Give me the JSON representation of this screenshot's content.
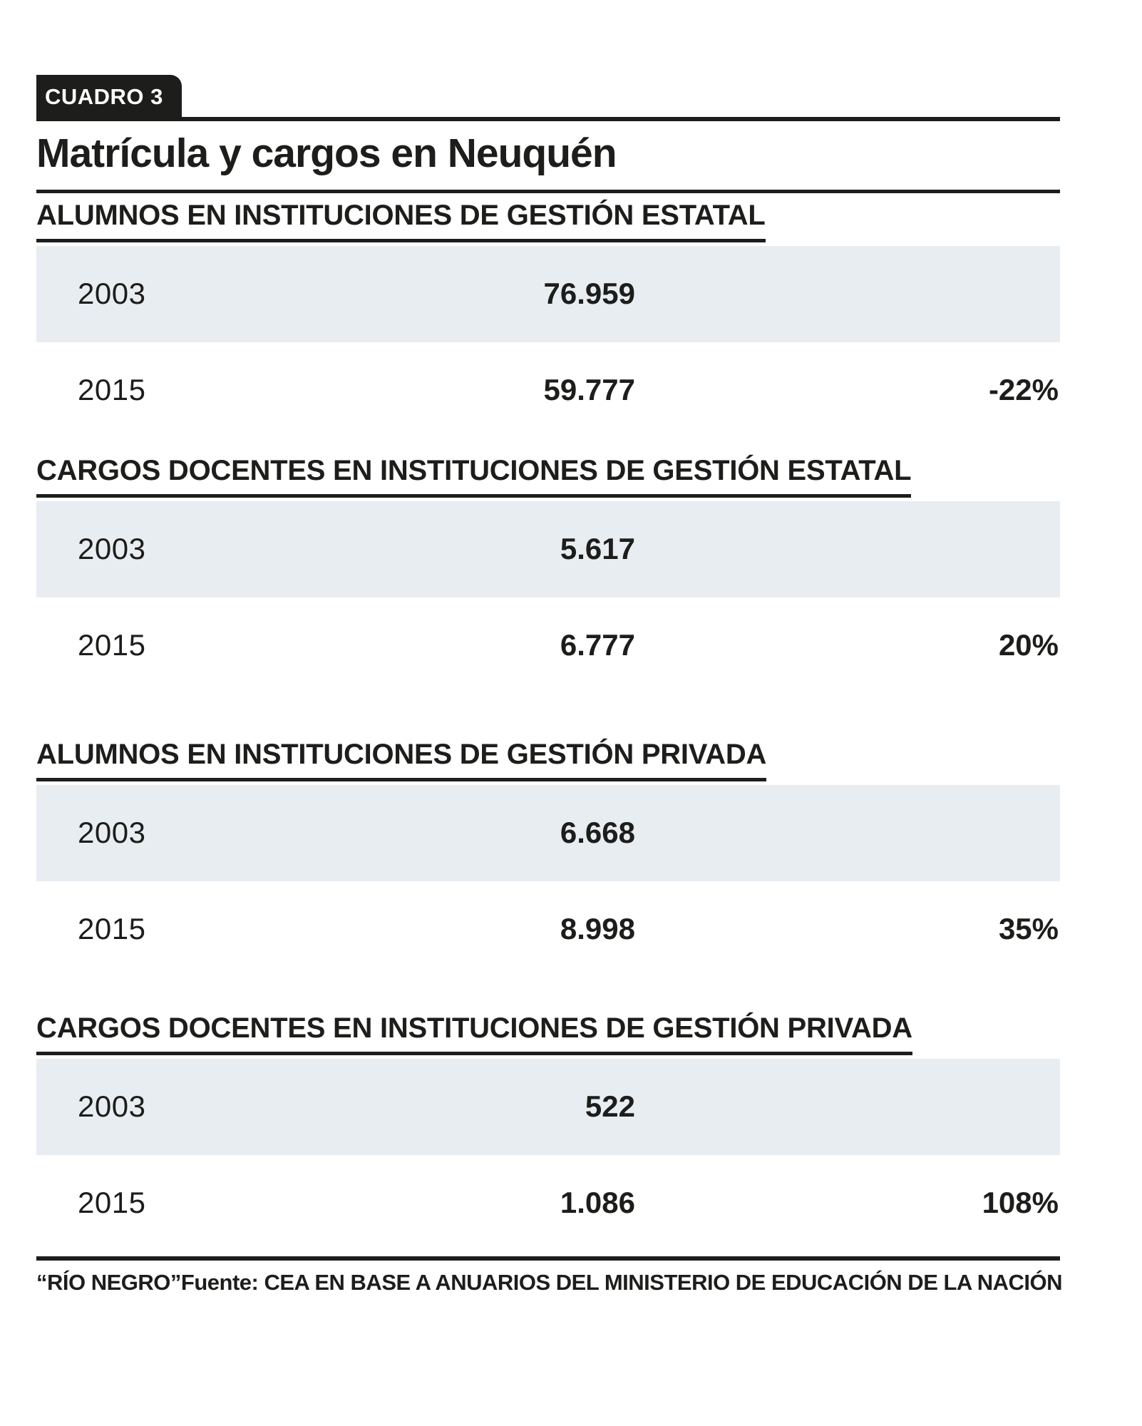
{
  "badge": {
    "label": "CUADRO 3"
  },
  "title": "Matrícula y cargos en Neuquén",
  "sections": [
    {
      "heading": "ALUMNOS EN INSTITUCIONES DE GESTIÓN ESTATAL",
      "rows": [
        {
          "year": "2003",
          "value": "76.959",
          "change": ""
        },
        {
          "year": "2015",
          "value": "59.777",
          "change": "-22%"
        }
      ]
    },
    {
      "heading": "CARGOS DOCENTES EN INSTITUCIONES DE GESTIÓN ESTATAL",
      "rows": [
        {
          "year": "2003",
          "value": "5.617",
          "change": ""
        },
        {
          "year": "2015",
          "value": "6.777",
          "change": "20%"
        }
      ]
    },
    {
      "heading": "ALUMNOS EN INSTITUCIONES DE GESTIÓN PRIVADA",
      "rows": [
        {
          "year": "2003",
          "value": "6.668",
          "change": ""
        },
        {
          "year": "2015",
          "value": "8.998",
          "change": "35%"
        }
      ]
    },
    {
      "heading": "CARGOS DOCENTES EN INSTITUCIONES DE GESTIÓN PRIVADA",
      "rows": [
        {
          "year": "2003",
          "value": "522",
          "change": ""
        },
        {
          "year": "2015",
          "value": "1.086",
          "change": "108%"
        }
      ]
    }
  ],
  "footer": {
    "credit": "“RÍO NEGRO”",
    "source": "Fuente: CEA EN BASE A ANUARIOS DEL MINISTERIO DE EDUCACIÓN DE LA NACIÓN"
  },
  "colors": {
    "ink": "#1d1d1b",
    "row_background": "#e8edf2",
    "badge_text": "#ffffff"
  },
  "chart_data": {
    "type": "table",
    "title": "Matrícula y cargos en Neuquén",
    "categories": [
      "2003",
      "2015"
    ],
    "series": [
      {
        "name": "Alumnos en instituciones de gestión estatal",
        "values": [
          76959,
          59777
        ],
        "change_pct": -22
      },
      {
        "name": "Cargos docentes en instituciones de gestión estatal",
        "values": [
          5617,
          6777
        ],
        "change_pct": 20
      },
      {
        "name": "Alumnos en instituciones de gestión privada",
        "values": [
          6668,
          8998
        ],
        "change_pct": 35
      },
      {
        "name": "Cargos docentes en instituciones de gestión privada",
        "values": [
          522,
          1086
        ],
        "change_pct": 108
      }
    ],
    "source": "CEA en base a anuarios del Ministerio de Educación de la Nación",
    "credit": "Río Negro",
    "figure_label": "Cuadro 3"
  }
}
